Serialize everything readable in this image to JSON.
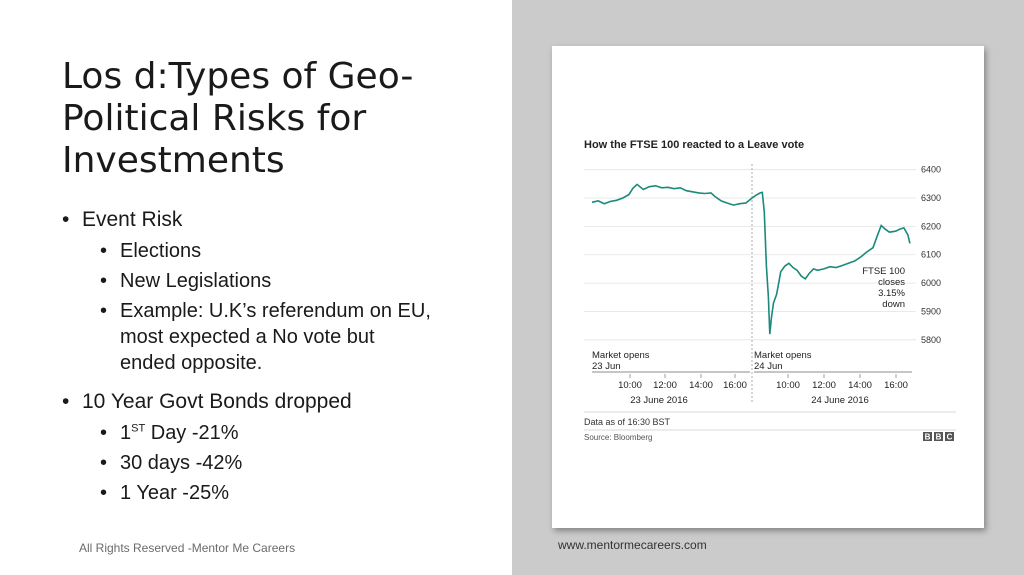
{
  "slide": {
    "title": "Los d:Types of Geo-Political Risks for Investments",
    "bullets": {
      "event_risk": "Event Risk",
      "elections": "Elections",
      "new_legislations": "New Legislations",
      "example_line1": "Example: U.K’s referendum on EU,",
      "example_line2": "most expected a No vote but",
      "example_line3": "ended opposite.",
      "bonds": "10 Year Govt Bonds dropped",
      "day_prefix": "1",
      "day_sup": "ST",
      "day_suffix": " Day -21%",
      "thirty_days": "30 days -42%",
      "one_year": "1 Year -25%"
    },
    "footer_left": "All Rights Reserved -Mentor Me Careers",
    "footer_right": "www.mentormecareers.com"
  },
  "chart_data": {
    "type": "line",
    "title": "How the FTSE 100 reacted to a Leave vote",
    "ylim": [
      5750,
      6420
    ],
    "y_ticks": [
      "6400",
      "6300",
      "6200",
      "6100",
      "6000",
      "5900",
      "5800"
    ],
    "x_tick_labels": [
      "10:00",
      "12:00",
      "14:00",
      "16:00",
      "10:00",
      "12:00",
      "14:00",
      "16:00"
    ],
    "day_labels": [
      "23 June 2016",
      "24 June 2016"
    ],
    "annotations": {
      "open1_line1": "Market opens",
      "open1_line2": "23 Jun",
      "open2_line1": "Market opens",
      "open2_line2": "24 Jun",
      "closes_line1": "FTSE 100",
      "closes_line2": "closes",
      "closes_line3": "3.15%",
      "closes_line4": "down"
    },
    "data_note": "Data as of 16:30 BST",
    "source": "Source: Bloomberg",
    "logo": "BBC",
    "line_color": "#1a8a7a",
    "series": [
      {
        "points": [
          [
            0,
            6285
          ],
          [
            3,
            6290
          ],
          [
            6,
            6280
          ],
          [
            9,
            6288
          ],
          [
            12,
            6292
          ],
          [
            15,
            6300
          ],
          [
            18,
            6312
          ],
          [
            20,
            6335
          ],
          [
            22,
            6348
          ],
          [
            25,
            6330
          ],
          [
            28,
            6340
          ],
          [
            31,
            6343
          ],
          [
            34,
            6336
          ],
          [
            37,
            6338
          ],
          [
            40,
            6333
          ],
          [
            43,
            6336
          ],
          [
            46,
            6326
          ],
          [
            49,
            6322
          ],
          [
            52,
            6318
          ],
          [
            55,
            6316
          ],
          [
            58,
            6318
          ],
          [
            60,
            6305
          ],
          [
            63,
            6290
          ],
          [
            66,
            6282
          ],
          [
            69,
            6275
          ],
          [
            72,
            6280
          ],
          [
            75,
            6282
          ],
          [
            78,
            6300
          ],
          [
            80,
            6310
          ],
          [
            82,
            6318
          ],
          [
            83,
            6320
          ],
          [
            84,
            6250
          ],
          [
            85,
            6060
          ],
          [
            86,
            5950
          ],
          [
            86.7,
            5820
          ],
          [
            87.5,
            5880
          ],
          [
            88.5,
            5930
          ],
          [
            90,
            5960
          ],
          [
            91,
            6000
          ],
          [
            92,
            6040
          ],
          [
            94,
            6060
          ],
          [
            96,
            6070
          ],
          [
            98,
            6055
          ],
          [
            100,
            6045
          ],
          [
            102,
            6025
          ],
          [
            104,
            6015
          ],
          [
            106,
            6035
          ],
          [
            108,
            6050
          ],
          [
            110,
            6045
          ],
          [
            113,
            6050
          ],
          [
            116,
            6058
          ],
          [
            119,
            6055
          ],
          [
            122,
            6062
          ],
          [
            125,
            6070
          ],
          [
            128,
            6078
          ],
          [
            131,
            6092
          ],
          [
            134,
            6110
          ],
          [
            137,
            6125
          ],
          [
            139,
            6165
          ],
          [
            141,
            6203
          ],
          [
            143,
            6190
          ],
          [
            145,
            6180
          ],
          [
            148,
            6183
          ],
          [
            150,
            6190
          ],
          [
            152,
            6195
          ],
          [
            154,
            6170
          ],
          [
            155,
            6140
          ]
        ]
      }
    ]
  }
}
